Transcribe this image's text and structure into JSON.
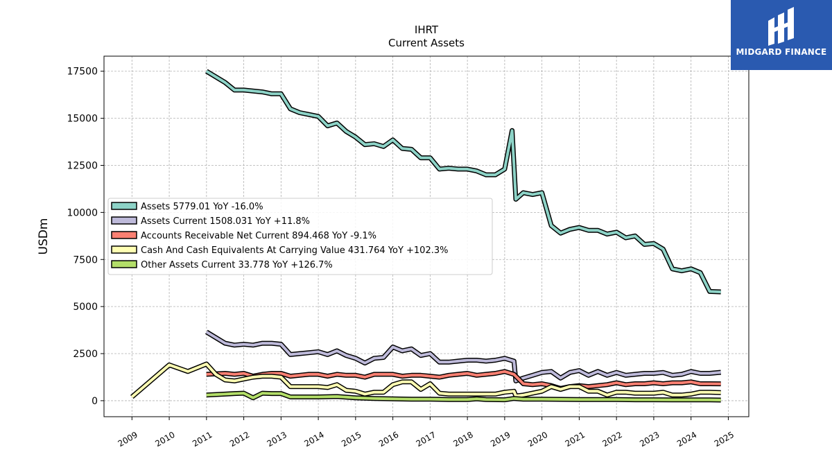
{
  "brand": {
    "name": "MIDGARD FINANCE",
    "bg_color": "#2a5ab0"
  },
  "chart_data": {
    "type": "line",
    "title": "IHRT",
    "subtitle": "Current  Assets",
    "xlabel": "",
    "ylabel": "USDm",
    "xlim": [
      2008.25,
      2025.55
    ],
    "ylim": [
      -850,
      18300
    ],
    "yticks": [
      0,
      2500,
      5000,
      7500,
      10000,
      12500,
      15000,
      17500
    ],
    "xticks": [
      2009,
      2010,
      2011,
      2012,
      2013,
      2014,
      2015,
      2016,
      2017,
      2018,
      2019,
      2020,
      2021,
      2022,
      2023,
      2024,
      2025
    ],
    "grid": true,
    "legend_position": "center-left",
    "series": [
      {
        "name": "Assets",
        "legend": "Assets  5779.01 YoY -16.0%",
        "color": "#8dd3c7",
        "x": [
          2011.0,
          2011.5,
          2011.75,
          2012.0,
          2012.5,
          2012.75,
          2013.0,
          2013.25,
          2013.5,
          2013.75,
          2014.0,
          2014.25,
          2014.5,
          2014.75,
          2015.0,
          2015.25,
          2015.5,
          2015.75,
          2016.0,
          2016.25,
          2016.5,
          2016.75,
          2017.0,
          2017.25,
          2017.5,
          2017.75,
          2018.0,
          2018.25,
          2018.5,
          2018.75,
          2019.0,
          2019.2,
          2019.3,
          2019.5,
          2019.75,
          2020.0,
          2020.25,
          2020.5,
          2020.75,
          2021.0,
          2021.25,
          2021.5,
          2021.75,
          2022.0,
          2022.25,
          2022.5,
          2022.75,
          2023.0,
          2023.25,
          2023.5,
          2023.75,
          2024.0,
          2024.25,
          2024.5,
          2024.8
        ],
        "y": [
          17500,
          16900,
          16500,
          16500,
          16400,
          16300,
          16300,
          15500,
          15300,
          15200,
          15100,
          14600,
          14750,
          14300,
          14000,
          13600,
          13650,
          13500,
          13850,
          13400,
          13350,
          12900,
          12900,
          12300,
          12350,
          12300,
          12300,
          12200,
          12000,
          12000,
          12300,
          14350,
          10700,
          11050,
          10950,
          11050,
          9300,
          8900,
          9100,
          9200,
          9050,
          9050,
          8850,
          8950,
          8650,
          8750,
          8300,
          8350,
          8050,
          7000,
          6900,
          7000,
          6800,
          5800,
          5779
        ]
      },
      {
        "name": "Assets Current",
        "legend": "Assets Current  1508.031 YoY +11.8%",
        "color": "#bebada",
        "x": [
          2011.0,
          2011.5,
          2011.75,
          2012.0,
          2012.25,
          2012.5,
          2012.75,
          2013.0,
          2013.25,
          2013.5,
          2013.75,
          2014.0,
          2014.25,
          2014.5,
          2014.75,
          2015.0,
          2015.25,
          2015.5,
          2015.75,
          2016.0,
          2016.25,
          2016.5,
          2016.75,
          2017.0,
          2017.25,
          2017.5,
          2017.75,
          2018.0,
          2018.25,
          2018.5,
          2018.75,
          2019.0,
          2019.25,
          2019.3,
          2019.5,
          2019.75,
          2020.0,
          2020.25,
          2020.5,
          2020.75,
          2021.0,
          2021.25,
          2021.5,
          2021.75,
          2022.0,
          2022.25,
          2022.5,
          2022.75,
          2023.0,
          2023.25,
          2023.5,
          2023.75,
          2024.0,
          2024.25,
          2024.5,
          2024.8
        ],
        "y": [
          3650,
          3050,
          2950,
          3000,
          2950,
          3050,
          3050,
          3000,
          2450,
          2500,
          2550,
          2600,
          2450,
          2650,
          2400,
          2250,
          2000,
          2250,
          2300,
          2850,
          2650,
          2750,
          2400,
          2500,
          2050,
          2050,
          2100,
          2150,
          2150,
          2100,
          2150,
          2250,
          2100,
          1050,
          1200,
          1350,
          1500,
          1550,
          1200,
          1500,
          1600,
          1350,
          1550,
          1350,
          1500,
          1350,
          1400,
          1450,
          1450,
          1500,
          1350,
          1400,
          1550,
          1450,
          1450,
          1508
        ]
      },
      {
        "name": "Accounts Receivable Net Current",
        "legend": "Accounts Receivable Net Current  894.468 YoY -9.1%",
        "color": "#fb8072",
        "x": [
          2011.0,
          2011.5,
          2011.75,
          2012.0,
          2012.25,
          2012.5,
          2012.75,
          2013.0,
          2013.25,
          2013.5,
          2013.75,
          2014.0,
          2014.25,
          2014.5,
          2014.75,
          2015.0,
          2015.25,
          2015.5,
          2015.75,
          2016.0,
          2016.25,
          2016.5,
          2016.75,
          2017.0,
          2017.25,
          2017.5,
          2017.75,
          2018.0,
          2018.25,
          2018.5,
          2018.75,
          2019.0,
          2019.25,
          2019.4,
          2019.5,
          2019.75,
          2020.0,
          2020.25,
          2020.5,
          2020.75,
          2021.0,
          2021.25,
          2021.5,
          2021.75,
          2022.0,
          2022.25,
          2022.5,
          2022.75,
          2023.0,
          2023.25,
          2023.5,
          2023.75,
          2024.0,
          2024.25,
          2024.5,
          2024.8
        ],
        "y": [
          1400,
          1450,
          1400,
          1450,
          1300,
          1400,
          1450,
          1450,
          1300,
          1350,
          1400,
          1400,
          1300,
          1400,
          1350,
          1350,
          1250,
          1400,
          1400,
          1400,
          1300,
          1350,
          1350,
          1300,
          1250,
          1350,
          1400,
          1450,
          1350,
          1400,
          1450,
          1550,
          1400,
          1100,
          900,
          850,
          900,
          800,
          650,
          750,
          800,
          750,
          800,
          850,
          950,
          850,
          900,
          900,
          950,
          900,
          950,
          950,
          1000,
          900,
          900,
          894
        ]
      },
      {
        "name": "Cash And Cash Equivalents At Carrying Value",
        "legend": "Cash And Cash Equivalents At Carrying Value  431.764 YoY +102.3%",
        "color": "#ffffb3",
        "x": [
          2009.0,
          2010.0,
          2010.5,
          2011.0,
          2011.25,
          2011.5,
          2011.75,
          2012.0,
          2012.25,
          2012.5,
          2012.75,
          2013.0,
          2013.25,
          2013.5,
          2013.75,
          2014.0,
          2014.25,
          2014.5,
          2014.75,
          2015.0,
          2015.25,
          2015.5,
          2015.75,
          2016.0,
          2016.25,
          2016.5,
          2016.75,
          2017.0,
          2017.25,
          2017.5,
          2017.75,
          2018.0,
          2018.25,
          2018.5,
          2018.75,
          2019.0,
          2019.25,
          2019.3,
          2019.5,
          2019.75,
          2020.0,
          2020.25,
          2020.5,
          2020.75,
          2021.0,
          2021.25,
          2021.5,
          2021.75,
          2022.0,
          2022.25,
          2022.5,
          2022.75,
          2023.0,
          2023.25,
          2023.5,
          2023.75,
          2024.0,
          2024.25,
          2024.5,
          2024.8
        ],
        "y": [
          200,
          1900,
          1550,
          1950,
          1400,
          1100,
          1050,
          1150,
          1250,
          1300,
          1300,
          1250,
          750,
          750,
          750,
          750,
          700,
          850,
          550,
          500,
          350,
          450,
          450,
          850,
          1000,
          1000,
          600,
          900,
          400,
          350,
          350,
          350,
          350,
          350,
          350,
          450,
          500,
          250,
          300,
          400,
          500,
          750,
          600,
          750,
          750,
          500,
          500,
          300,
          450,
          450,
          400,
          400,
          400,
          450,
          300,
          300,
          350,
          450,
          450,
          432
        ]
      },
      {
        "name": "Other Assets Current",
        "legend": "Other Assets Current  33.778 YoY +126.7%",
        "color": "#b3de69",
        "x": [
          2011.0,
          2011.5,
          2011.75,
          2012.0,
          2012.25,
          2012.5,
          2012.75,
          2013.0,
          2013.25,
          2013.5,
          2013.75,
          2014.0,
          2014.5,
          2015.0,
          2015.5,
          2016.0,
          2016.5,
          2017.0,
          2017.5,
          2018.0,
          2018.25,
          2018.5,
          2019.0,
          2019.25,
          2019.5,
          2020.0,
          2020.5,
          2021.0,
          2021.5,
          2022.0,
          2022.5,
          2023.0,
          2023.5,
          2024.0,
          2024.5,
          2024.8
        ],
        "y": [
          300,
          350,
          380,
          400,
          150,
          400,
          380,
          380,
          200,
          200,
          200,
          200,
          220,
          150,
          120,
          100,
          80,
          80,
          60,
          60,
          100,
          60,
          50,
          120,
          80,
          80,
          70,
          60,
          60,
          60,
          50,
          50,
          40,
          40,
          40,
          34
        ]
      }
    ]
  }
}
